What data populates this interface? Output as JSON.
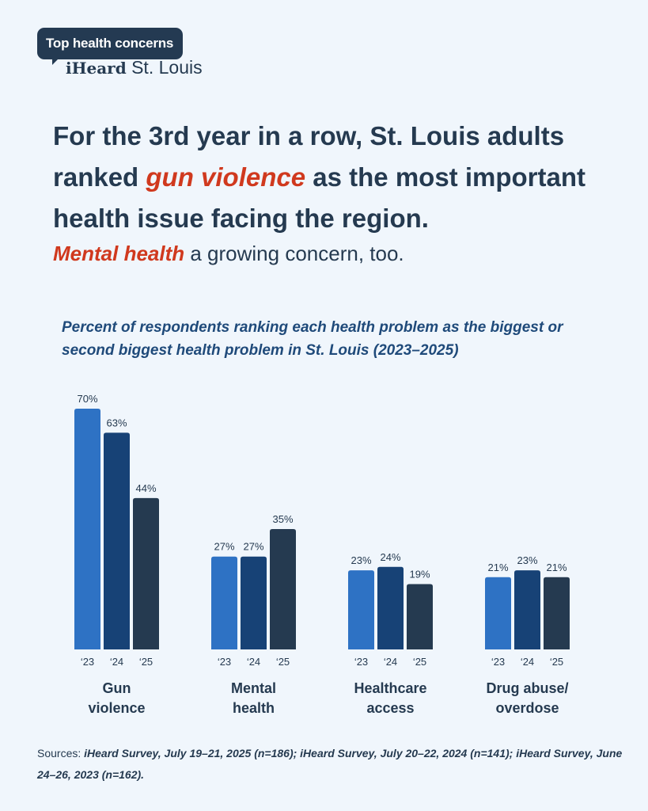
{
  "brand": {
    "badge": "Top health concerns",
    "name_bold": "iHeard",
    "name_rest": " St. Louis"
  },
  "headline": {
    "pre": "For the 3rd year in a row, St. Louis adults ranked ",
    "accent": "gun violence",
    "post": " as the most important health issue facing the region."
  },
  "subhead": {
    "accent": "Mental health",
    "rest": " a growing concern, too."
  },
  "chart_title": "Percent of respondents ranking each health problem as the biggest or second biggest health problem in St. Louis (2023–2025)",
  "chart_data": {
    "type": "bar",
    "categories": [
      "Gun violence",
      "Mental health",
      "Healthcare access",
      "Drug abuse/ overdose"
    ],
    "category_lines": [
      [
        "Gun",
        "violence"
      ],
      [
        "Mental",
        "health"
      ],
      [
        "Healthcare",
        "access"
      ],
      [
        "Drug abuse/",
        "overdose"
      ]
    ],
    "series": [
      {
        "name": "‘23",
        "values": [
          70,
          27,
          23,
          21
        ],
        "color": "#2e72c4"
      },
      {
        "name": "‘24",
        "values": [
          63,
          27,
          24,
          23
        ],
        "color": "#174276"
      },
      {
        "name": "‘25",
        "values": [
          44,
          35,
          19,
          21
        ],
        "color": "#253a50"
      }
    ],
    "value_suffix": "%",
    "ylim": [
      0,
      70
    ],
    "grid": false,
    "legend": "none"
  },
  "sources": {
    "label": "Sources: ",
    "text": "iHeard Survey, July 19–21, 2025 (n=186); iHeard Survey, July 20–22, 2024 (n=141); iHeard Survey, June 24–26, 2023 (n=162)."
  },
  "colors": {
    "background": "#f0f6fc",
    "text": "#253a50",
    "accent": "#d0391e",
    "title_blue": "#1f4a7a"
  }
}
